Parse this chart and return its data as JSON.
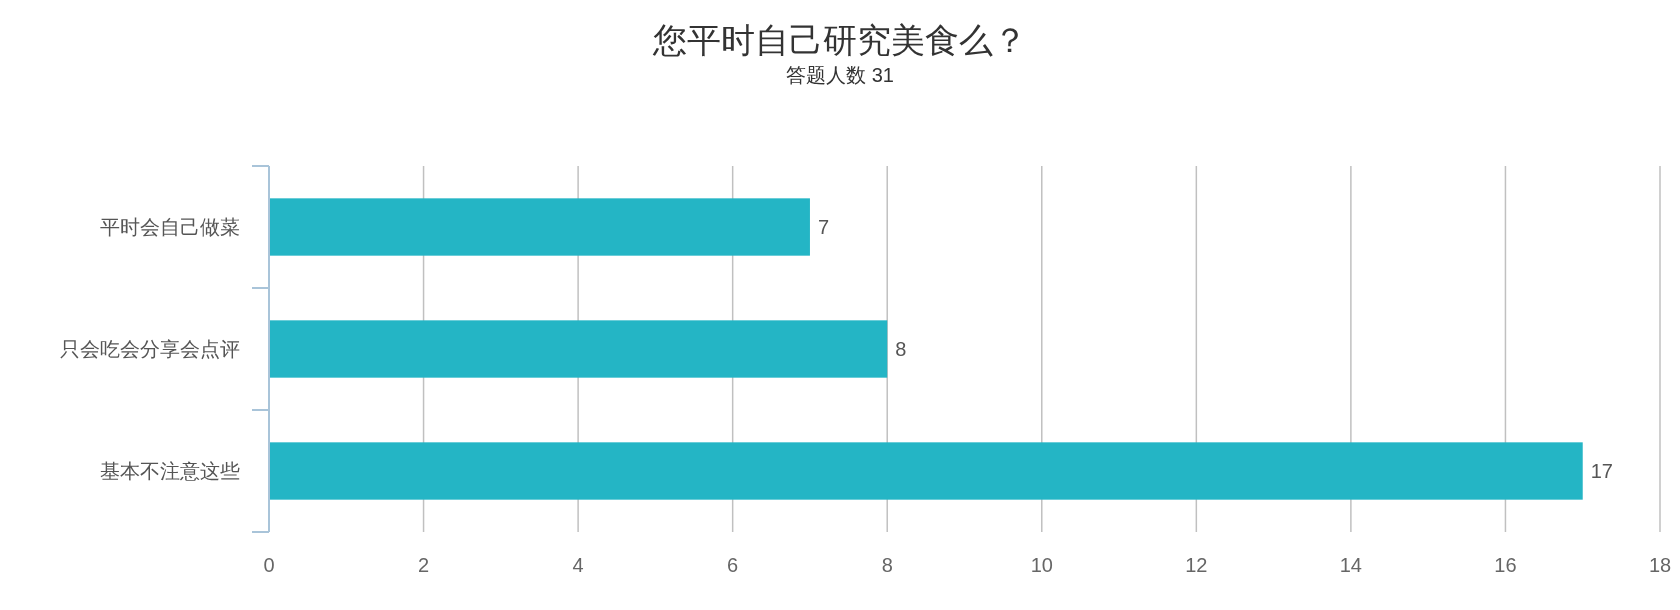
{
  "chart_data": {
    "type": "bar",
    "orientation": "horizontal",
    "title": "您平时自己研究美食么？",
    "subtitle": "答题人数 31",
    "categories": [
      "平时会自己做菜",
      "只会吃会分享会点评",
      "基本不注意这些"
    ],
    "values": [
      7,
      8,
      17
    ],
    "color": "#24b5c5",
    "xlim": [
      0,
      18
    ],
    "xticks": [
      0,
      2,
      4,
      6,
      8,
      10,
      12,
      14,
      16,
      18
    ],
    "grid": "x",
    "data_labels": true
  }
}
